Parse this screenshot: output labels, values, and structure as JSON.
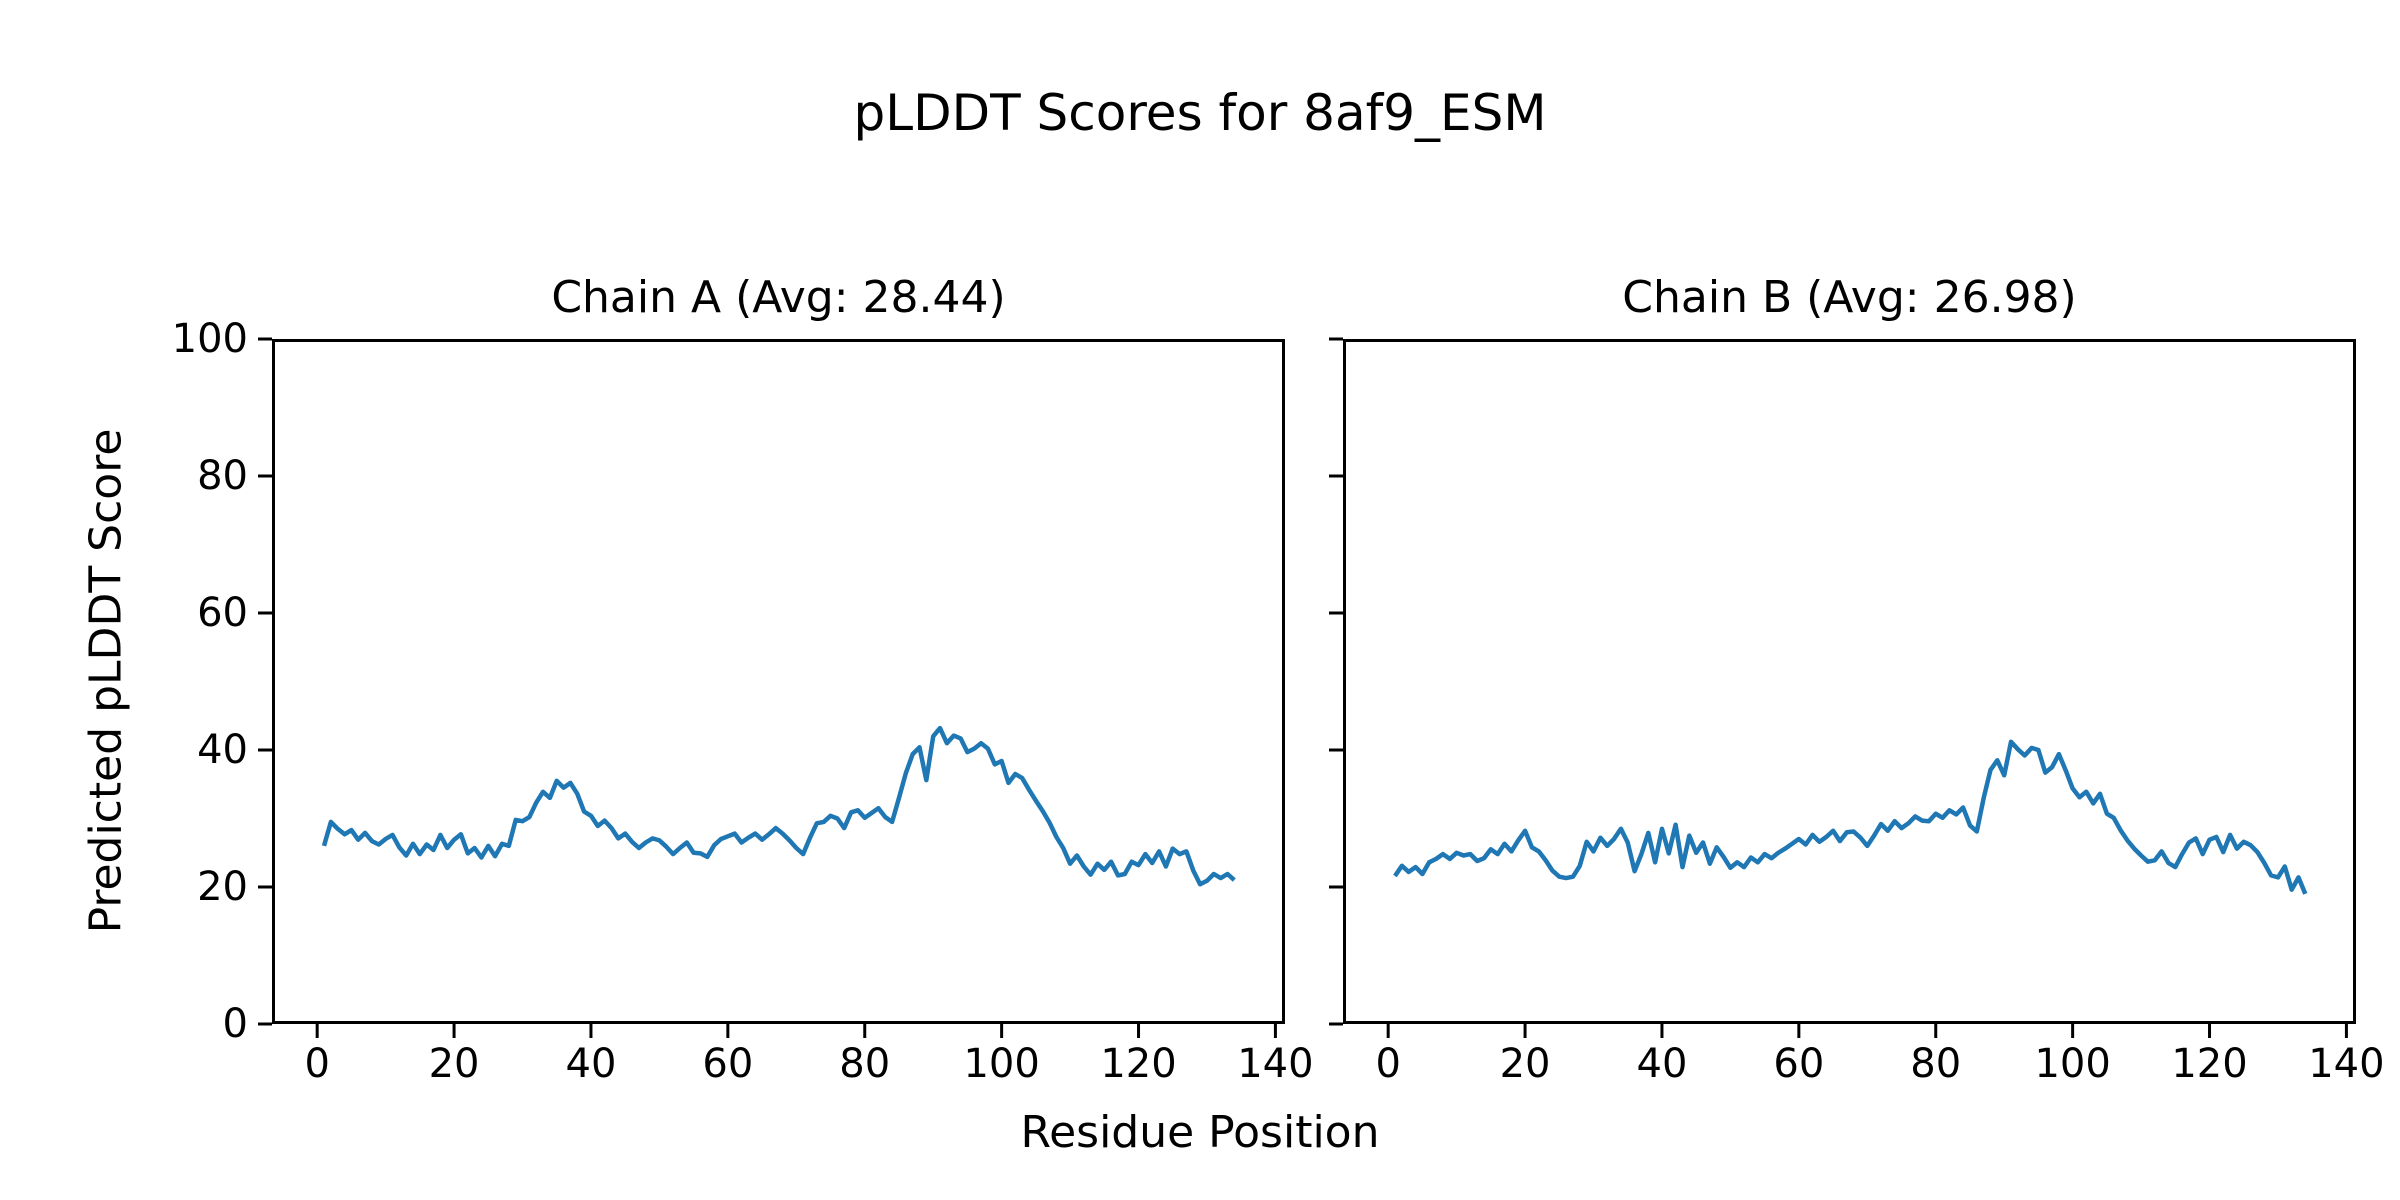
{
  "figure": {
    "title": "pLDDT Scores for 8af9_ESM",
    "xlabel": "Residue Position",
    "ylabel": "Predicted pLDDT Score",
    "background_color": "#ffffff",
    "axis_color": "#000000",
    "line_color": "#1f77b4"
  },
  "chart_data": [
    {
      "type": "line",
      "title": "Chain A (Avg: 28.44)",
      "chain": "A",
      "average_plddt": 28.44,
      "legend": "none",
      "grid": false,
      "xlim": [
        -6.6,
        141.4
      ],
      "ylim": [
        0,
        100
      ],
      "xticks": [
        0,
        20,
        40,
        60,
        80,
        100,
        120,
        140
      ],
      "yticks": [
        0,
        20,
        40,
        60,
        80,
        100
      ],
      "y_tick_labels_shown": true,
      "x_start": 1,
      "values": [
        26.0,
        29.5,
        28.5,
        27.7,
        28.3,
        26.9,
        27.9,
        26.7,
        26.2,
        27.0,
        27.6,
        25.8,
        24.6,
        26.3,
        24.8,
        26.2,
        25.4,
        27.6,
        25.7,
        26.9,
        27.7,
        24.9,
        25.7,
        24.3,
        26.0,
        24.5,
        26.3,
        26.0,
        29.8,
        29.6,
        30.2,
        32.3,
        33.9,
        33.0,
        35.5,
        34.5,
        35.2,
        33.6,
        31.0,
        30.4,
        28.9,
        29.7,
        28.6,
        27.1,
        27.8,
        26.6,
        25.7,
        26.5,
        27.1,
        26.8,
        25.9,
        24.8,
        25.7,
        26.5,
        25.0,
        24.9,
        24.4,
        26.1,
        27.0,
        27.4,
        27.8,
        26.5,
        27.2,
        27.8,
        26.9,
        27.7,
        28.6,
        27.8,
        26.8,
        25.7,
        24.8,
        27.2,
        29.3,
        29.5,
        30.4,
        30.0,
        28.6,
        30.9,
        31.2,
        30.1,
        30.8,
        31.5,
        30.2,
        29.5,
        33.0,
        36.6,
        39.4,
        40.4,
        35.6,
        42.0,
        43.2,
        41.0,
        42.1,
        41.7,
        39.7,
        40.2,
        41.0,
        40.2,
        37.9,
        38.4,
        35.2,
        36.5,
        35.9,
        34.2,
        32.6,
        31.1,
        29.4,
        27.3,
        25.7,
        23.4,
        24.6,
        23.0,
        21.8,
        23.4,
        22.5,
        23.7,
        21.7,
        21.9,
        23.7,
        23.2,
        24.8,
        23.5,
        25.2,
        23.0,
        25.6,
        24.8,
        25.2,
        22.4,
        20.4,
        20.9,
        21.9,
        21.3,
        21.9,
        21.0
      ]
    },
    {
      "type": "line",
      "title": "Chain B (Avg: 26.98)",
      "chain": "B",
      "average_plddt": 26.98,
      "legend": "none",
      "grid": false,
      "xlim": [
        -6.6,
        141.4
      ],
      "ylim": [
        0,
        100
      ],
      "xticks": [
        0,
        20,
        40,
        60,
        80,
        100,
        120,
        140
      ],
      "yticks": [
        0,
        20,
        40,
        60,
        80,
        100
      ],
      "y_tick_labels_shown": false,
      "x_start": 1,
      "values": [
        21.6,
        23.1,
        22.2,
        22.9,
        21.9,
        23.6,
        24.1,
        24.8,
        24.1,
        25.0,
        24.6,
        24.8,
        23.8,
        24.2,
        25.5,
        24.8,
        26.3,
        25.2,
        26.8,
        28.2,
        25.8,
        25.2,
        23.9,
        22.4,
        21.5,
        21.3,
        21.5,
        23.1,
        26.6,
        25.2,
        27.2,
        26.0,
        27.0,
        28.5,
        26.5,
        22.3,
        24.8,
        27.9,
        23.6,
        28.5,
        24.9,
        29.1,
        22.9,
        27.5,
        25.0,
        26.5,
        23.4,
        25.8,
        24.4,
        22.8,
        23.6,
        22.9,
        24.3,
        23.6,
        24.8,
        24.2,
        25.0,
        25.6,
        26.3,
        27.0,
        26.2,
        27.6,
        26.6,
        27.3,
        28.2,
        26.7,
        28.0,
        28.1,
        27.2,
        26.0,
        27.5,
        29.2,
        28.2,
        29.6,
        28.6,
        29.3,
        30.3,
        29.7,
        29.6,
        30.7,
        30.1,
        31.2,
        30.6,
        31.6,
        29.0,
        28.1,
        33.0,
        37.1,
        38.5,
        36.3,
        41.2,
        40.1,
        39.2,
        40.3,
        40.0,
        36.7,
        37.5,
        39.4,
        37.0,
        34.4,
        33.1,
        33.9,
        32.2,
        33.6,
        30.7,
        30.1,
        28.3,
        26.8,
        25.6,
        24.6,
        23.7,
        23.9,
        25.2,
        23.5,
        22.9,
        24.8,
        26.5,
        27.1,
        24.8,
        26.9,
        27.3,
        25.1,
        27.6,
        25.6,
        26.6,
        26.1,
        25.1,
        23.5,
        21.7,
        21.4,
        23.0,
        19.6,
        21.4,
        19.0
      ]
    }
  ]
}
